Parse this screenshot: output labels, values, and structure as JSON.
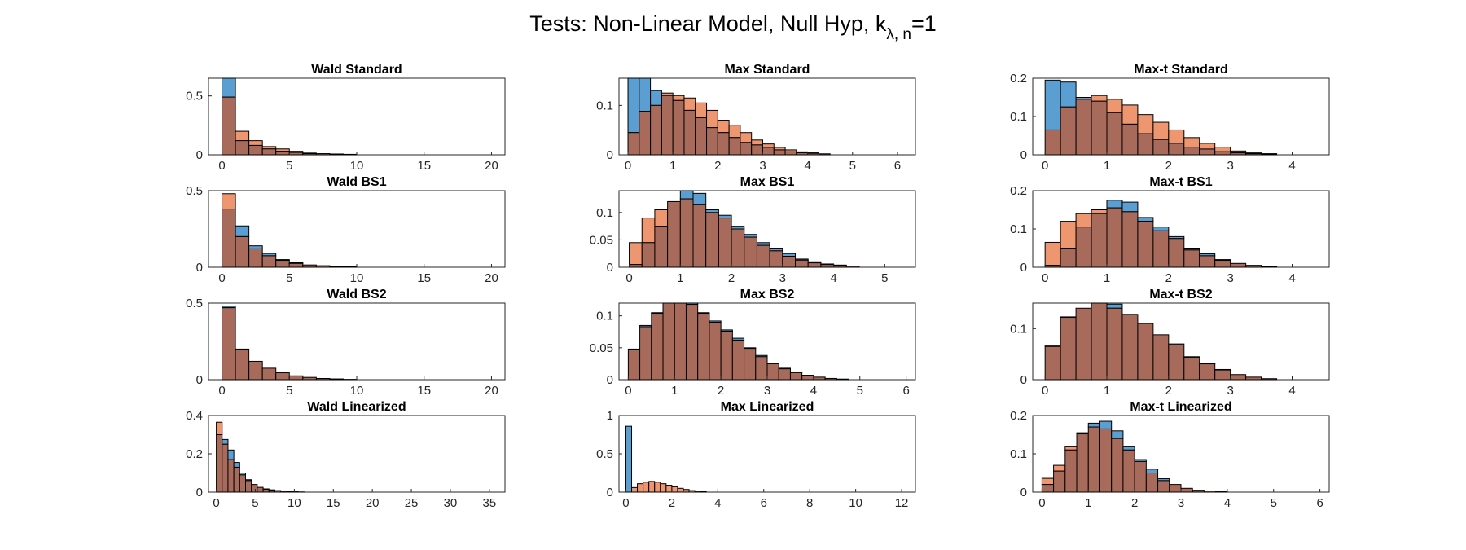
{
  "figure": {
    "title_main": "Tests: Non-Linear Model, Null Hyp, k",
    "title_sub": "λ, n",
    "title_tail": "=1"
  },
  "colors": {
    "series_a": "#5b9fd2",
    "series_b": "#ee9670",
    "overlap": "#a86a5a"
  },
  "chart_data": [
    {
      "type": "bar",
      "title": "Wald Standard",
      "xlim": [
        -1,
        21
      ],
      "ylim": [
        0,
        0.65
      ],
      "xticks": [
        0,
        5,
        10,
        15,
        20
      ],
      "yticks": [
        0,
        0.5
      ],
      "ytick_labels": [
        "0",
        "0.5"
      ],
      "bin_edges_start": 0,
      "bin_width": 1,
      "series": [
        {
          "values": [
            0.65,
            0.12,
            0.08,
            0.05,
            0.03,
            0.02,
            0.01,
            0.01,
            0.005,
            0.003
          ]
        },
        {
          "values": [
            0.49,
            0.2,
            0.12,
            0.07,
            0.05,
            0.03,
            0.015,
            0.01,
            0.007,
            0.004
          ]
        }
      ]
    },
    {
      "type": "bar",
      "title": "Max Standard",
      "xlim": [
        -0.2,
        6.4
      ],
      "ylim": [
        0,
        0.155
      ],
      "xticks": [
        0,
        1,
        2,
        3,
        4,
        5,
        6
      ],
      "yticks": [
        0,
        0.1
      ],
      "ytick_labels": [
        "0",
        "0.1"
      ],
      "bin_edges_start": 0,
      "bin_width": 0.25,
      "series": [
        {
          "values": [
            0.155,
            0.155,
            0.13,
            0.12,
            0.11,
            0.09,
            0.075,
            0.055,
            0.045,
            0.035,
            0.025,
            0.02,
            0.015,
            0.01,
            0.006,
            0.004,
            0.003,
            0.002
          ]
        },
        {
          "values": [
            0.045,
            0.088,
            0.1,
            0.125,
            0.12,
            0.115,
            0.105,
            0.09,
            0.07,
            0.06,
            0.045,
            0.03,
            0.022,
            0.015,
            0.01,
            0.006,
            0.004,
            0.002
          ]
        }
      ]
    },
    {
      "type": "bar",
      "title": "Max-t Standard",
      "xlim": [
        -0.2,
        4.6
      ],
      "ylim": [
        0,
        0.2
      ],
      "xticks": [
        0,
        1,
        2,
        3,
        4
      ],
      "yticks": [
        0,
        0.1,
        0.2
      ],
      "ytick_labels": [
        "0",
        "0.1",
        "0.2"
      ],
      "bin_edges_start": 0,
      "bin_width": 0.25,
      "series": [
        {
          "values": [
            0.195,
            0.19,
            0.15,
            0.14,
            0.11,
            0.08,
            0.055,
            0.04,
            0.03,
            0.02,
            0.015,
            0.008,
            0.005,
            0.003,
            0.002
          ]
        },
        {
          "values": [
            0.065,
            0.125,
            0.145,
            0.155,
            0.145,
            0.13,
            0.105,
            0.085,
            0.065,
            0.045,
            0.03,
            0.02,
            0.01,
            0.005,
            0.003
          ]
        }
      ]
    },
    {
      "type": "bar",
      "title": "Wald BS1",
      "xlim": [
        -1,
        21
      ],
      "ylim": [
        0,
        0.5
      ],
      "xticks": [
        0,
        5,
        10,
        15,
        20
      ],
      "yticks": [
        0,
        0.5
      ],
      "ytick_labels": [
        "0",
        "0.5"
      ],
      "bin_edges_start": 0,
      "bin_width": 1,
      "series": [
        {
          "values": [
            0.38,
            0.27,
            0.14,
            0.09,
            0.05,
            0.03,
            0.015,
            0.01,
            0.006,
            0.003
          ]
        },
        {
          "values": [
            0.48,
            0.2,
            0.12,
            0.075,
            0.045,
            0.025,
            0.015,
            0.008,
            0.005,
            0.002
          ]
        }
      ]
    },
    {
      "type": "bar",
      "title": "Max BS1",
      "xlim": [
        -0.2,
        5.6
      ],
      "ylim": [
        0,
        0.14
      ],
      "xticks": [
        0,
        1,
        2,
        3,
        4,
        5
      ],
      "yticks": [
        0,
        0.05,
        0.1
      ],
      "ytick_labels": [
        "0",
        "0.05",
        "0.1"
      ],
      "bin_edges_start": 0,
      "bin_width": 0.25,
      "series": [
        {
          "values": [
            0.005,
            0.045,
            0.075,
            0.12,
            0.14,
            0.135,
            0.105,
            0.095,
            0.075,
            0.06,
            0.045,
            0.035,
            0.025,
            0.015,
            0.01,
            0.006,
            0.004,
            0.002
          ]
        },
        {
          "values": [
            0.045,
            0.09,
            0.105,
            0.12,
            0.125,
            0.115,
            0.1,
            0.09,
            0.07,
            0.055,
            0.04,
            0.03,
            0.02,
            0.013,
            0.008,
            0.005,
            0.003,
            0.002
          ]
        }
      ]
    },
    {
      "type": "bar",
      "title": "Max-t BS1",
      "xlim": [
        -0.2,
        4.6
      ],
      "ylim": [
        0,
        0.2
      ],
      "xticks": [
        0,
        1,
        2,
        3,
        4
      ],
      "yticks": [
        0,
        0.1,
        0.2
      ],
      "ytick_labels": [
        "0",
        "0.1",
        "0.2"
      ],
      "bin_edges_start": 0,
      "bin_width": 0.25,
      "series": [
        {
          "values": [
            0.005,
            0.05,
            0.105,
            0.14,
            0.175,
            0.17,
            0.13,
            0.105,
            0.08,
            0.05,
            0.035,
            0.02,
            0.01,
            0.005,
            0.003
          ]
        },
        {
          "values": [
            0.065,
            0.12,
            0.14,
            0.15,
            0.155,
            0.145,
            0.12,
            0.095,
            0.075,
            0.045,
            0.03,
            0.018,
            0.01,
            0.005,
            0.002
          ]
        }
      ]
    },
    {
      "type": "bar",
      "title": "Wald BS2",
      "xlim": [
        -1,
        21
      ],
      "ylim": [
        0,
        0.5
      ],
      "xticks": [
        0,
        5,
        10,
        15,
        20
      ],
      "yticks": [
        0,
        0.5
      ],
      "ytick_labels": [
        "0",
        "0.5"
      ],
      "bin_edges_start": 0,
      "bin_width": 1,
      "series": [
        {
          "values": [
            0.48,
            0.2,
            0.12,
            0.075,
            0.045,
            0.025,
            0.015,
            0.008,
            0.005,
            0.002
          ]
        },
        {
          "values": [
            0.47,
            0.195,
            0.12,
            0.075,
            0.045,
            0.025,
            0.015,
            0.008,
            0.005,
            0.002
          ]
        }
      ]
    },
    {
      "type": "bar",
      "title": "Max BS2",
      "xlim": [
        -0.2,
        6.2
      ],
      "ylim": [
        0,
        0.12
      ],
      "xticks": [
        0,
        1,
        2,
        3,
        4,
        5,
        6
      ],
      "yticks": [
        0,
        0.05,
        0.1
      ],
      "ytick_labels": [
        "0",
        "0.05",
        "0.1"
      ],
      "bin_edges_start": 0,
      "bin_width": 0.25,
      "series": [
        {
          "values": [
            0.048,
            0.085,
            0.105,
            0.12,
            0.12,
            0.12,
            0.105,
            0.092,
            0.078,
            0.065,
            0.05,
            0.038,
            0.026,
            0.018,
            0.012,
            0.007,
            0.004,
            0.002,
            0.001
          ]
        },
        {
          "values": [
            0.047,
            0.083,
            0.104,
            0.12,
            0.12,
            0.118,
            0.104,
            0.09,
            0.076,
            0.062,
            0.049,
            0.036,
            0.025,
            0.017,
            0.011,
            0.007,
            0.004,
            0.002,
            0.001
          ]
        }
      ]
    },
    {
      "type": "bar",
      "title": "Max-t BS2",
      "xlim": [
        -0.2,
        4.6
      ],
      "ylim": [
        0,
        0.15
      ],
      "xticks": [
        0,
        1,
        2,
        3,
        4
      ],
      "yticks": [
        0,
        0.1
      ],
      "ytick_labels": [
        "0",
        "0.1"
      ],
      "bin_edges_start": 0,
      "bin_width": 0.25,
      "series": [
        {
          "values": [
            0.066,
            0.123,
            0.14,
            0.15,
            0.148,
            0.128,
            0.11,
            0.088,
            0.07,
            0.045,
            0.032,
            0.02,
            0.01,
            0.005,
            0.002
          ]
        },
        {
          "values": [
            0.065,
            0.122,
            0.14,
            0.15,
            0.14,
            0.128,
            0.11,
            0.088,
            0.068,
            0.044,
            0.031,
            0.019,
            0.01,
            0.005,
            0.002
          ]
        }
      ]
    },
    {
      "type": "bar",
      "title": "Wald Linearized",
      "xlim": [
        -1,
        37
      ],
      "ylim": [
        0,
        0.4
      ],
      "xticks": [
        0,
        5,
        10,
        15,
        20,
        25,
        30,
        35
      ],
      "yticks": [
        0,
        0.2,
        0.4
      ],
      "ytick_labels": [
        "0",
        "0.2",
        "0.4"
      ],
      "bin_edges_start": 0,
      "bin_width": 0.75,
      "series": [
        {
          "values": [
            0.3,
            0.275,
            0.22,
            0.155,
            0.1,
            0.065,
            0.04,
            0.025,
            0.015,
            0.01,
            0.007,
            0.005,
            0.003,
            0.002,
            0.001
          ]
        },
        {
          "values": [
            0.365,
            0.25,
            0.17,
            0.13,
            0.09,
            0.06,
            0.04,
            0.025,
            0.017,
            0.012,
            0.008,
            0.005,
            0.003,
            0.002,
            0.001
          ]
        }
      ]
    },
    {
      "type": "bar",
      "title": "Max Linearized",
      "xlim": [
        -0.3,
        12.6
      ],
      "ylim": [
        0,
        1
      ],
      "xticks": [
        0,
        2,
        4,
        6,
        8,
        10,
        12
      ],
      "yticks": [
        0,
        0.5,
        1
      ],
      "ytick_labels": [
        "0",
        "0.5",
        "1"
      ],
      "bin_edges_start": 0,
      "bin_width": 0.25,
      "series": [
        {
          "values": [
            0.86,
            0.0,
            0.0,
            0.0,
            0.0,
            0.0,
            0.0,
            0.0,
            0.0,
            0.0,
            0.0,
            0.0
          ]
        },
        {
          "values": [
            0.0,
            0.06,
            0.11,
            0.13,
            0.14,
            0.13,
            0.11,
            0.09,
            0.07,
            0.05,
            0.035,
            0.02,
            0.012,
            0.007
          ]
        }
      ]
    },
    {
      "type": "bar",
      "title": "Max-t Linearized",
      "xlim": [
        -0.2,
        6.2
      ],
      "ylim": [
        0,
        0.2
      ],
      "xticks": [
        0,
        1,
        2,
        3,
        4,
        5,
        6
      ],
      "yticks": [
        0,
        0.1,
        0.2
      ],
      "ytick_labels": [
        "0",
        "0.1",
        "0.2"
      ],
      "bin_edges_start": 0,
      "bin_width": 0.25,
      "series": [
        {
          "values": [
            0.02,
            0.055,
            0.11,
            0.155,
            0.18,
            0.185,
            0.16,
            0.12,
            0.085,
            0.06,
            0.035,
            0.02,
            0.01,
            0.005,
            0.003,
            0.001
          ]
        },
        {
          "values": [
            0.036,
            0.07,
            0.12,
            0.152,
            0.17,
            0.165,
            0.14,
            0.11,
            0.08,
            0.05,
            0.03,
            0.02,
            0.01,
            0.005,
            0.003,
            0.001
          ]
        }
      ]
    }
  ]
}
